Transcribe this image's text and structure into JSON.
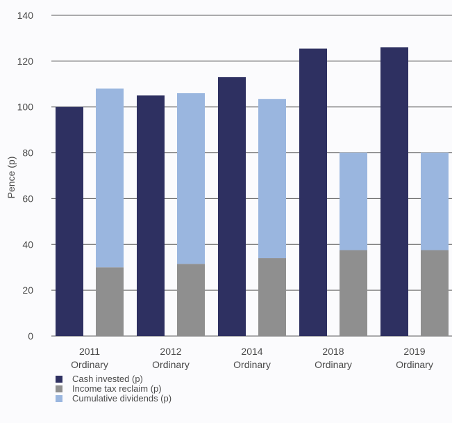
{
  "chart_data": {
    "type": "bar",
    "ylabel": "Pence (p)",
    "xlabel": "",
    "title": "",
    "ylim": [
      0,
      140
    ],
    "yticks": [
      0,
      20,
      40,
      60,
      80,
      100,
      120,
      140
    ],
    "grid": true,
    "legend_position": "bottom-left",
    "categories": [
      [
        "2011",
        "Ordinary"
      ],
      [
        "2012",
        "Ordinary"
      ],
      [
        "2014",
        "Ordinary"
      ],
      [
        "2018",
        "Ordinary"
      ],
      [
        "2019",
        "Ordinary"
      ]
    ],
    "series": [
      {
        "name": "Cash invested (p)",
        "color": "#2e3061",
        "stack": "cash",
        "values": [
          100,
          105,
          113,
          125.5,
          126
        ]
      },
      {
        "name": "Income tax reclaim (p)",
        "color": "#8f8f8f",
        "stack": "returns",
        "values": [
          30,
          31.5,
          34,
          37.5,
          37.5
        ]
      },
      {
        "name": "Cumulative dividends (p)",
        "color": "#9ab6df",
        "stack": "returns",
        "values": [
          78,
          74.5,
          69.5,
          42.5,
          42.5
        ]
      }
    ]
  }
}
